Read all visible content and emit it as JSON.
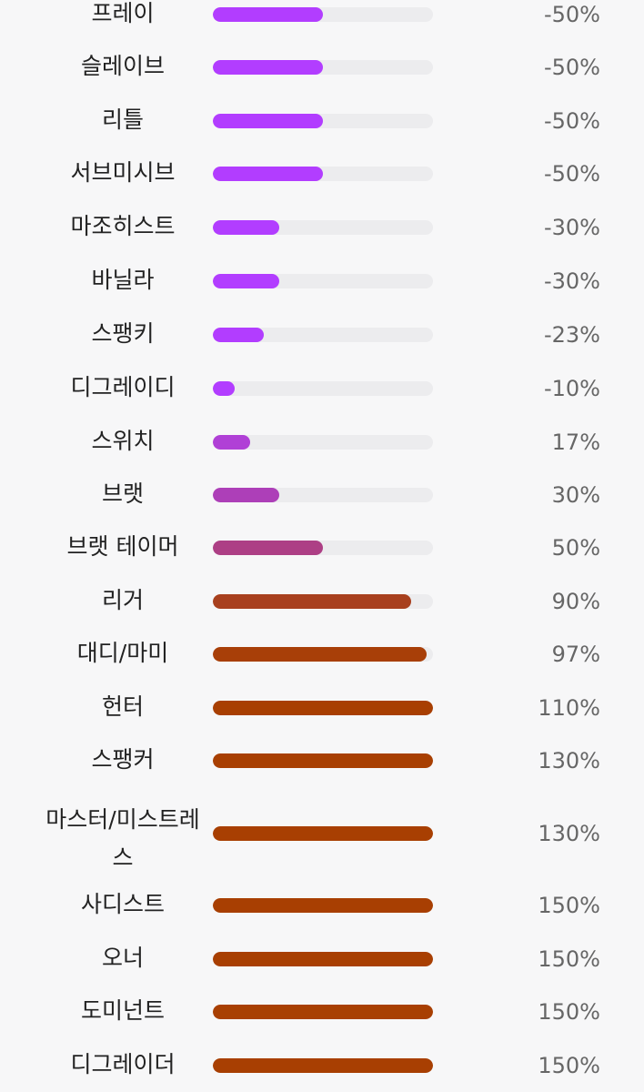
{
  "scale": {
    "min": -100,
    "max": 150
  },
  "colors": {
    "background": "#f7f7f8",
    "track": "#ececee",
    "label_text": "#222222",
    "value_text": "#666666"
  },
  "rows": [
    {
      "label": "프레이",
      "value_text": "-50%",
      "percent": -50,
      "bar_level": 0.5,
      "color": "#b23dff"
    },
    {
      "label": "슬레이브",
      "value_text": "-50%",
      "percent": -50,
      "bar_level": 0.5,
      "color": "#b23dff"
    },
    {
      "label": "리틀",
      "value_text": "-50%",
      "percent": -50,
      "bar_level": 0.5,
      "color": "#b23dff"
    },
    {
      "label": "서브미시브",
      "value_text": "-50%",
      "percent": -50,
      "bar_level": 0.5,
      "color": "#b23dff"
    },
    {
      "label": "마조히스트",
      "value_text": "-30%",
      "percent": -30,
      "bar_level": 0.3,
      "color": "#b23dff"
    },
    {
      "label": "바닐라",
      "value_text": "-30%",
      "percent": -30,
      "bar_level": 0.3,
      "color": "#b23dff"
    },
    {
      "label": "스팽키",
      "value_text": "-23%",
      "percent": -23,
      "bar_level": 0.23,
      "color": "#b23dff"
    },
    {
      "label": "디그레이디",
      "value_text": "-10%",
      "percent": -10,
      "bar_level": 0.1,
      "color": "#b23dff"
    },
    {
      "label": "스위치",
      "value_text": "17%",
      "percent": 17,
      "bar_level": 0.17,
      "color": "#b040d6"
    },
    {
      "label": "브랫",
      "value_text": "30%",
      "percent": 30,
      "bar_level": 0.3,
      "color": "#ad3fb8"
    },
    {
      "label": "브랫 테이머",
      "value_text": "50%",
      "percent": 50,
      "bar_level": 0.5,
      "color": "#ad3f85"
    },
    {
      "label": "리거",
      "value_text": "90%",
      "percent": 90,
      "bar_level": 0.9,
      "color": "#a8401e"
    },
    {
      "label": "대디/마미",
      "value_text": "97%",
      "percent": 97,
      "bar_level": 0.97,
      "color": "#a83f08"
    },
    {
      "label": "헌터",
      "value_text": "110%",
      "percent": 110,
      "bar_level": 1.0,
      "color": "#a83f02"
    },
    {
      "label": "스팽커",
      "value_text": "130%",
      "percent": 130,
      "bar_level": 1.0,
      "color": "#a83f02"
    },
    {
      "label": "마스터/미스트레스",
      "value_text": "130%",
      "percent": 130,
      "bar_level": 1.0,
      "color": "#a83f02"
    },
    {
      "label": "사디스트",
      "value_text": "150%",
      "percent": 150,
      "bar_level": 1.0,
      "color": "#a83f02"
    },
    {
      "label": "오너",
      "value_text": "150%",
      "percent": 150,
      "bar_level": 1.0,
      "color": "#a83f02"
    },
    {
      "label": "도미넌트",
      "value_text": "150%",
      "percent": 150,
      "bar_level": 1.0,
      "color": "#a83f02"
    },
    {
      "label": "디그레이더",
      "value_text": "150%",
      "percent": 150,
      "bar_level": 1.0,
      "color": "#a83f02"
    }
  ]
}
